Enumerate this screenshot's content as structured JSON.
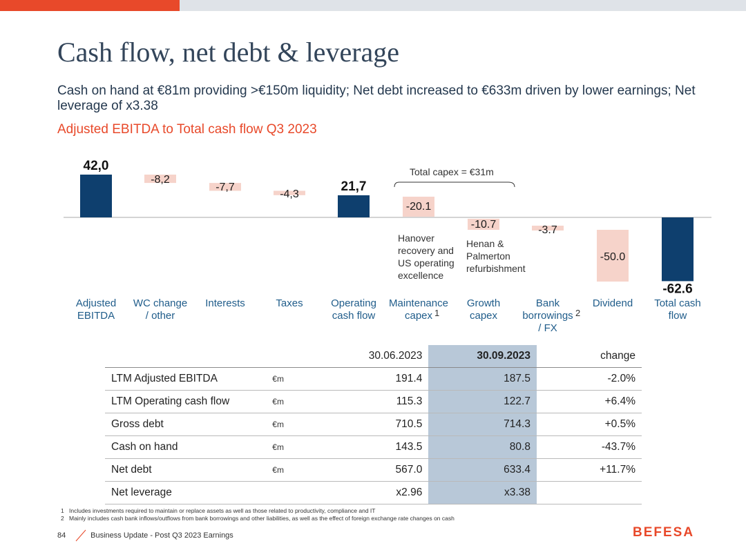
{
  "header": {
    "title": "Cash flow, net debt & leverage",
    "subtitle": "Cash on hand at €81m providing >€150m liquidity; Net debt increased to €633m driven by lower earnings; Net leverage of x3.38",
    "section_title": "Adjusted EBITDA to Total cash flow Q3 2023"
  },
  "colors": {
    "accent": "#e8492a",
    "navy": "#0e3f6e",
    "salmon": "#f6d3ca",
    "highlight": "#b8c8d8"
  },
  "chart_data": {
    "type": "bar",
    "subtype": "waterfall",
    "title": "Adjusted EBITDA to Total cash flow Q3 2023",
    "unit": "€m",
    "categories": [
      "Adjusted EBITDA",
      "WC change / other",
      "Interests",
      "Taxes",
      "Operating cash flow",
      "Maintenance capex",
      "Growth capex",
      "Bank borrowings / FX",
      "Dividend",
      "Total cash flow"
    ],
    "category_lines": [
      [
        "Adjusted",
        "EBITDA"
      ],
      [
        "WC change",
        "/ other"
      ],
      [
        "Interests"
      ],
      [
        "Taxes"
      ],
      [
        "Operating",
        "cash flow"
      ],
      [
        "Maintenance",
        "capex"
      ],
      [
        "Growth",
        "capex"
      ],
      [
        "Bank",
        "borrowings",
        "/ FX"
      ],
      [
        "Dividend"
      ],
      [
        "Total cash",
        "flow"
      ]
    ],
    "category_footnotes": [
      "",
      "",
      "",
      "",
      "",
      "1",
      "",
      "2",
      "",
      ""
    ],
    "values": [
      42.0,
      -8.2,
      -7.7,
      -4.3,
      21.7,
      -20.1,
      -10.7,
      -3.7,
      -50.0,
      -62.6
    ],
    "labels": [
      "42,0",
      "-8,2",
      "-7,7",
      "-4,3",
      "21,7",
      "-20.1",
      "-10.7",
      "-3.7",
      "-50.0",
      "-62.6"
    ],
    "kinds": [
      "total",
      "delta",
      "delta",
      "delta",
      "total",
      "delta",
      "delta",
      "delta",
      "delta",
      "total"
    ],
    "annotations": {
      "capex_bracket": "Total capex = €31m",
      "maintenance_note": [
        "Hanover",
        "recovery and",
        "US operating",
        "excellence"
      ],
      "growth_note": [
        "Henan &",
        "Palmerton",
        "refurbishment"
      ]
    }
  },
  "table": {
    "columns": [
      "",
      "",
      "30.06.2023",
      "30.09.2023",
      "change"
    ],
    "rows": [
      {
        "label": "LTM Adjusted EBITDA",
        "unit": "€m",
        "v1": "191.4",
        "v2": "187.5",
        "change": "-2.0%"
      },
      {
        "label": "LTM Operating cash flow",
        "unit": "€m",
        "v1": "115.3",
        "v2": "122.7",
        "change": "+6.4%"
      },
      {
        "label": "Gross debt",
        "unit": "€m",
        "v1": "710.5",
        "v2": "714.3",
        "change": "+0.5%"
      },
      {
        "label": "Cash on hand",
        "unit": "€m",
        "v1": "143.5",
        "v2": "80.8",
        "change": "-43.7%"
      },
      {
        "label": "Net debt",
        "unit": "€m",
        "v1": "567.0",
        "v2": "633.4",
        "change": "+11.7%"
      },
      {
        "label": "Net leverage",
        "unit": "",
        "v1": "x2.96",
        "v2": "x3.38",
        "change": ""
      }
    ]
  },
  "footnotes": [
    {
      "num": "1",
      "text": "Includes investments required to maintain or replace assets as well as those related to productivity, compliance and IT"
    },
    {
      "num": "2",
      "text": "Mainly includes cash bank inflows/outflows from bank borrowings and other liabilities, as well as the effect of foreign exchange rate changes on cash"
    }
  ],
  "footer": {
    "page": "84",
    "text": "Business Update - Post Q3 2023 Earnings",
    "logo": "BEFESA"
  }
}
